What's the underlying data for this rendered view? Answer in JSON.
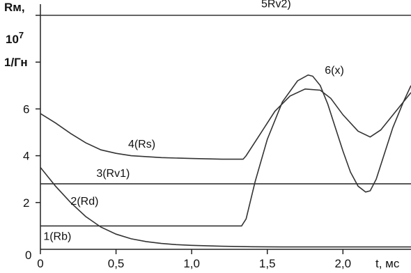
{
  "chart_data": {
    "type": "line",
    "ylabel_lines": [
      "Rм,",
      "10",
      "1/Гн"
    ],
    "ylabel_exponent": "7",
    "xlabel": "t, мс",
    "xlim": [
      0,
      2.45
    ],
    "ylim": [
      0,
      10
    ],
    "x_ticks": [
      {
        "value": 0,
        "label": "0"
      },
      {
        "value": 0.5,
        "label": "0,5"
      },
      {
        "value": 1.0,
        "label": "1,0"
      },
      {
        "value": 1.5,
        "label": "1,5"
      },
      {
        "value": 2.0,
        "label": "2,0"
      }
    ],
    "y_ticks": [
      {
        "value": 2,
        "label": "2"
      },
      {
        "value": 4,
        "label": "4"
      },
      {
        "value": 6,
        "label": "6"
      }
    ],
    "grid": false,
    "legend": "none",
    "series": [
      {
        "name": "1(Rb)",
        "label_at": [
          0.02,
          0.4
        ],
        "x": [
          0,
          0.1,
          0.2,
          0.3,
          0.4,
          0.5,
          0.6,
          0.7,
          0.8,
          0.9,
          1.0,
          1.2,
          1.4,
          1.6,
          1.8,
          2.0,
          2.2,
          2.45
        ],
        "y": [
          3.5,
          2.7,
          2.0,
          1.4,
          0.95,
          0.65,
          0.45,
          0.33,
          0.25,
          0.2,
          0.17,
          0.13,
          0.11,
          0.1,
          0.1,
          0.1,
          0.1,
          0.1
        ]
      },
      {
        "name": "2(Rd)",
        "label_at": [
          0.2,
          1.9
        ],
        "x": [
          0,
          0.5,
          1.0,
          1.33,
          1.36,
          1.42,
          1.5,
          1.6,
          1.7,
          1.77,
          1.8,
          1.85,
          1.9,
          1.95,
          2.0,
          2.05,
          2.1,
          2.15,
          2.18,
          2.22,
          2.27,
          2.33,
          2.4,
          2.45
        ],
        "y": [
          1.0,
          1.0,
          1.0,
          1.0,
          1.3,
          2.9,
          4.7,
          6.3,
          7.2,
          7.45,
          7.4,
          7.0,
          6.2,
          5.2,
          4.2,
          3.3,
          2.7,
          2.45,
          2.5,
          3.0,
          4.0,
          5.2,
          6.3,
          7.0
        ]
      },
      {
        "name": "3(Rv1)",
        "label_at": [
          0.37,
          3.1
        ],
        "x": [
          0,
          2.45
        ],
        "y": [
          2.8,
          2.8
        ]
      },
      {
        "name": "4(Rs)",
        "label_at": [
          0.58,
          4.35
        ],
        "x": [
          0,
          0.1,
          0.2,
          0.3,
          0.4,
          0.5,
          0.6,
          0.8,
          1.0,
          1.2,
          1.34,
          1.36,
          1.45,
          1.55,
          1.65,
          1.75,
          1.85,
          1.92,
          2.0,
          2.1,
          2.18,
          2.25,
          2.35,
          2.45
        ],
        "y": [
          5.8,
          5.4,
          4.95,
          4.55,
          4.25,
          4.1,
          4.0,
          3.92,
          3.88,
          3.85,
          3.85,
          4.0,
          4.9,
          5.9,
          6.55,
          6.85,
          6.8,
          6.45,
          5.75,
          5.05,
          4.8,
          5.1,
          5.9,
          6.7
        ]
      },
      {
        "name": "5Rv2)",
        "label_at": [
          1.46,
          10.35
        ],
        "x": [
          0,
          2.45
        ],
        "y": [
          10,
          10
        ]
      },
      {
        "name": "6(x)",
        "label_at": [
          1.88,
          7.5
        ],
        "x": [],
        "y": []
      }
    ]
  }
}
